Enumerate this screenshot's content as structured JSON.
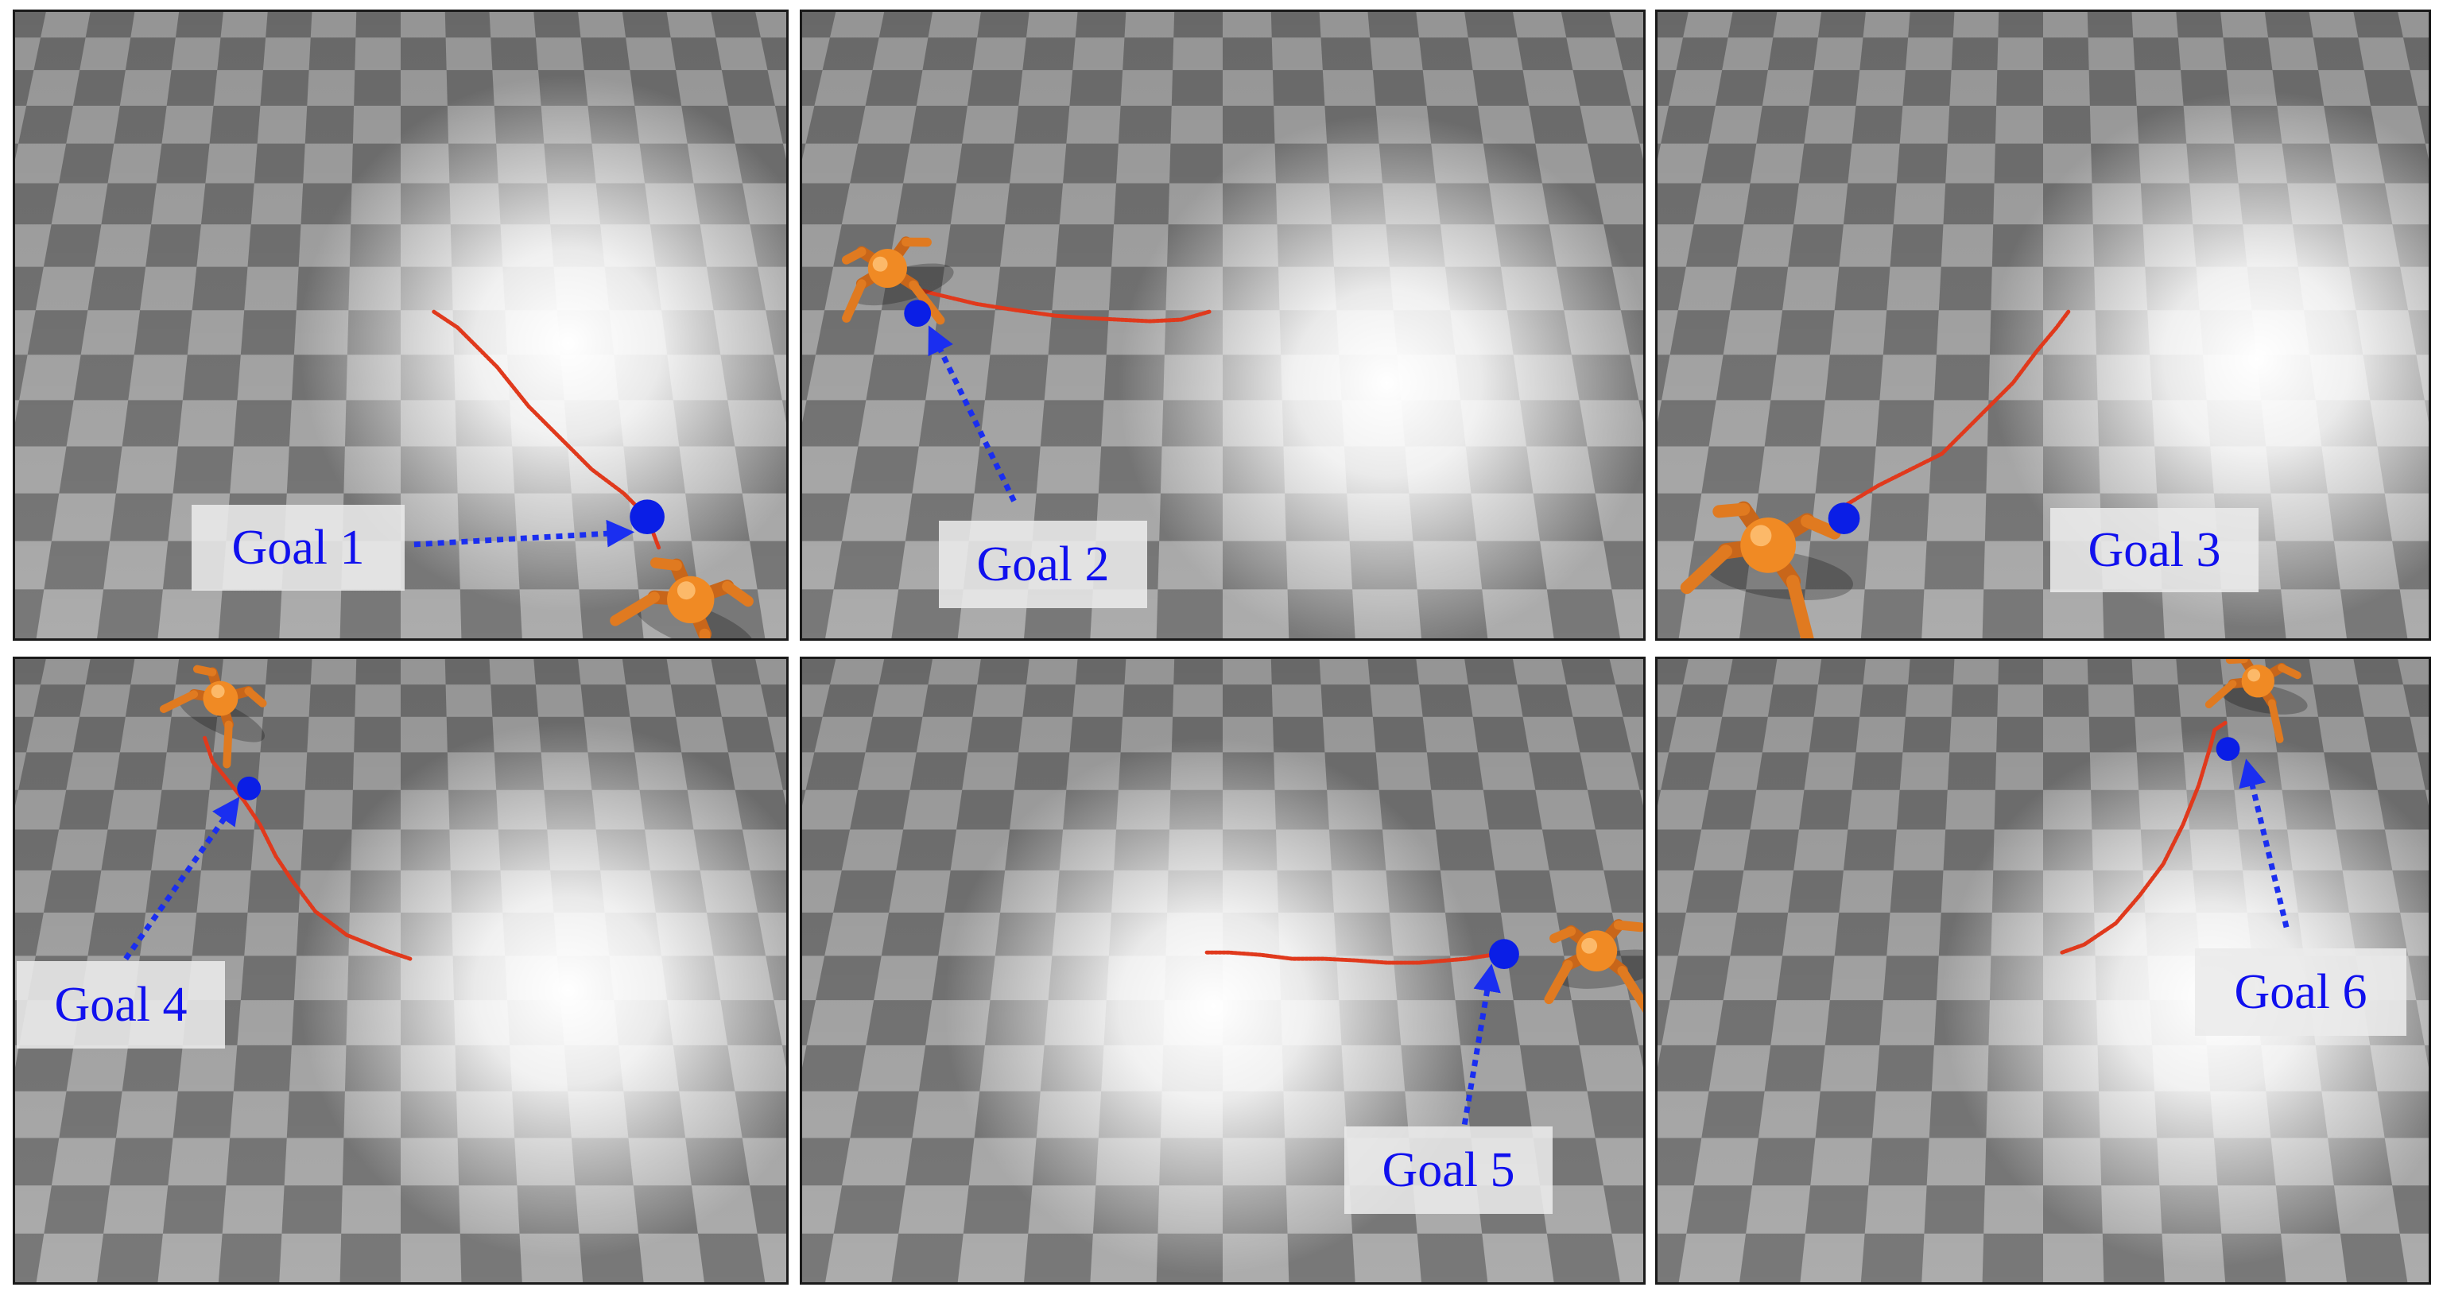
{
  "panels": [
    {
      "goal_label": "Goal 1"
    },
    {
      "goal_label": "Goal 2"
    },
    {
      "goal_label": "Goal 3"
    },
    {
      "goal_label": "Goal 4"
    },
    {
      "goal_label": "Goal 5"
    },
    {
      "goal_label": "Goal 6"
    }
  ],
  "colors": {
    "checker_light": "#b5b5b5",
    "checker_dark": "#7f7f7f",
    "trajectory": "#e0391c",
    "goal_marker": "#0a1ee6",
    "goal_arrow": "#1a2ef0",
    "agent_body": "#f08a24",
    "label_text": "#1010ee",
    "label_background": "#ebebeb"
  },
  "icons": {
    "agent": "ant-robot-icon",
    "goal": "goal-marker-icon",
    "arrow": "dotted-arrow-icon"
  }
}
